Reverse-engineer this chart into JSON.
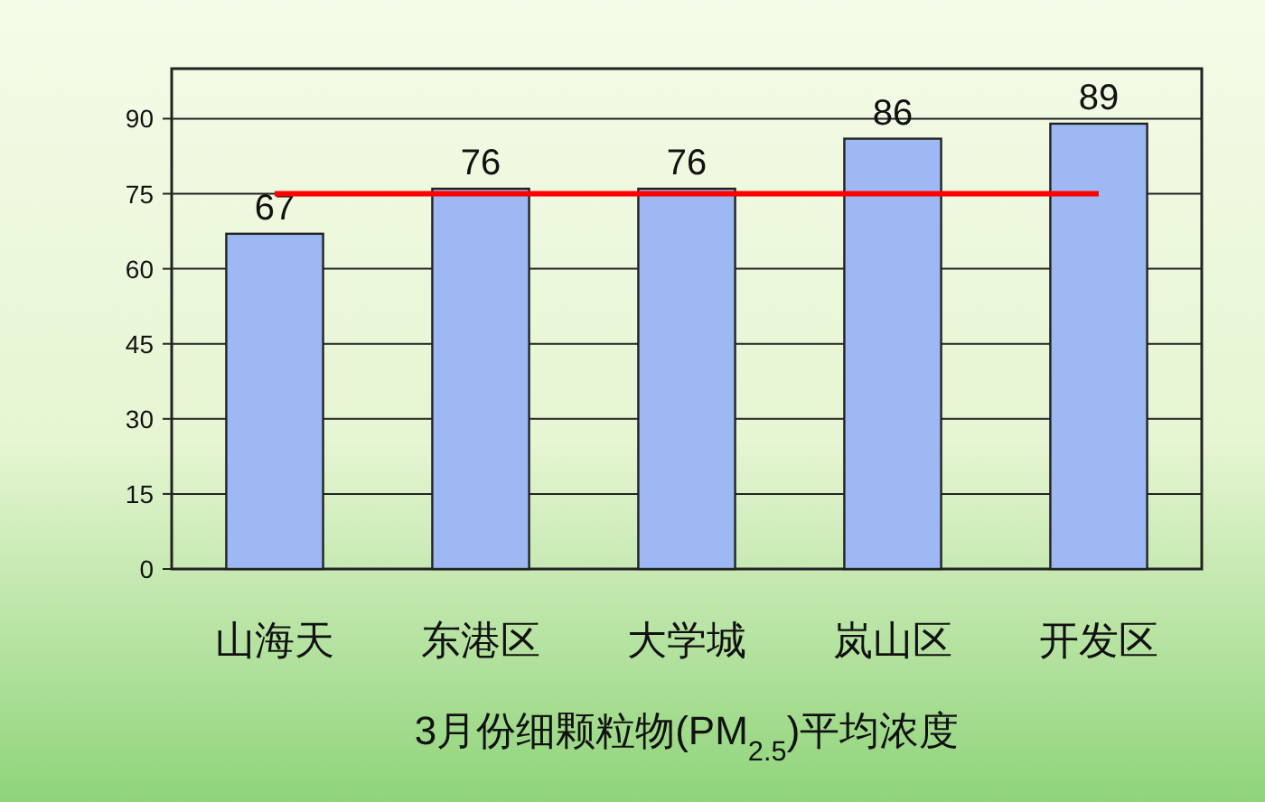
{
  "chart_data": {
    "type": "bar",
    "xlabel": "3月份细颗粒物(PM$_{2.5}$)平均浓度",
    "categories": [
      "山海天",
      "东港区",
      "大学城",
      "岚山区",
      "开发区"
    ],
    "values": [
      67,
      76,
      76,
      86,
      89
    ],
    "color": "#9db8f2",
    "ylim": [
      0,
      100
    ],
    "yticks": [
      0,
      15,
      30,
      45,
      60,
      75,
      90
    ],
    "grid": "y",
    "data_labels": true,
    "ref_lines": [
      {
        "axis": "y",
        "value": 75,
        "color": "#ff0000"
      }
    ]
  }
}
